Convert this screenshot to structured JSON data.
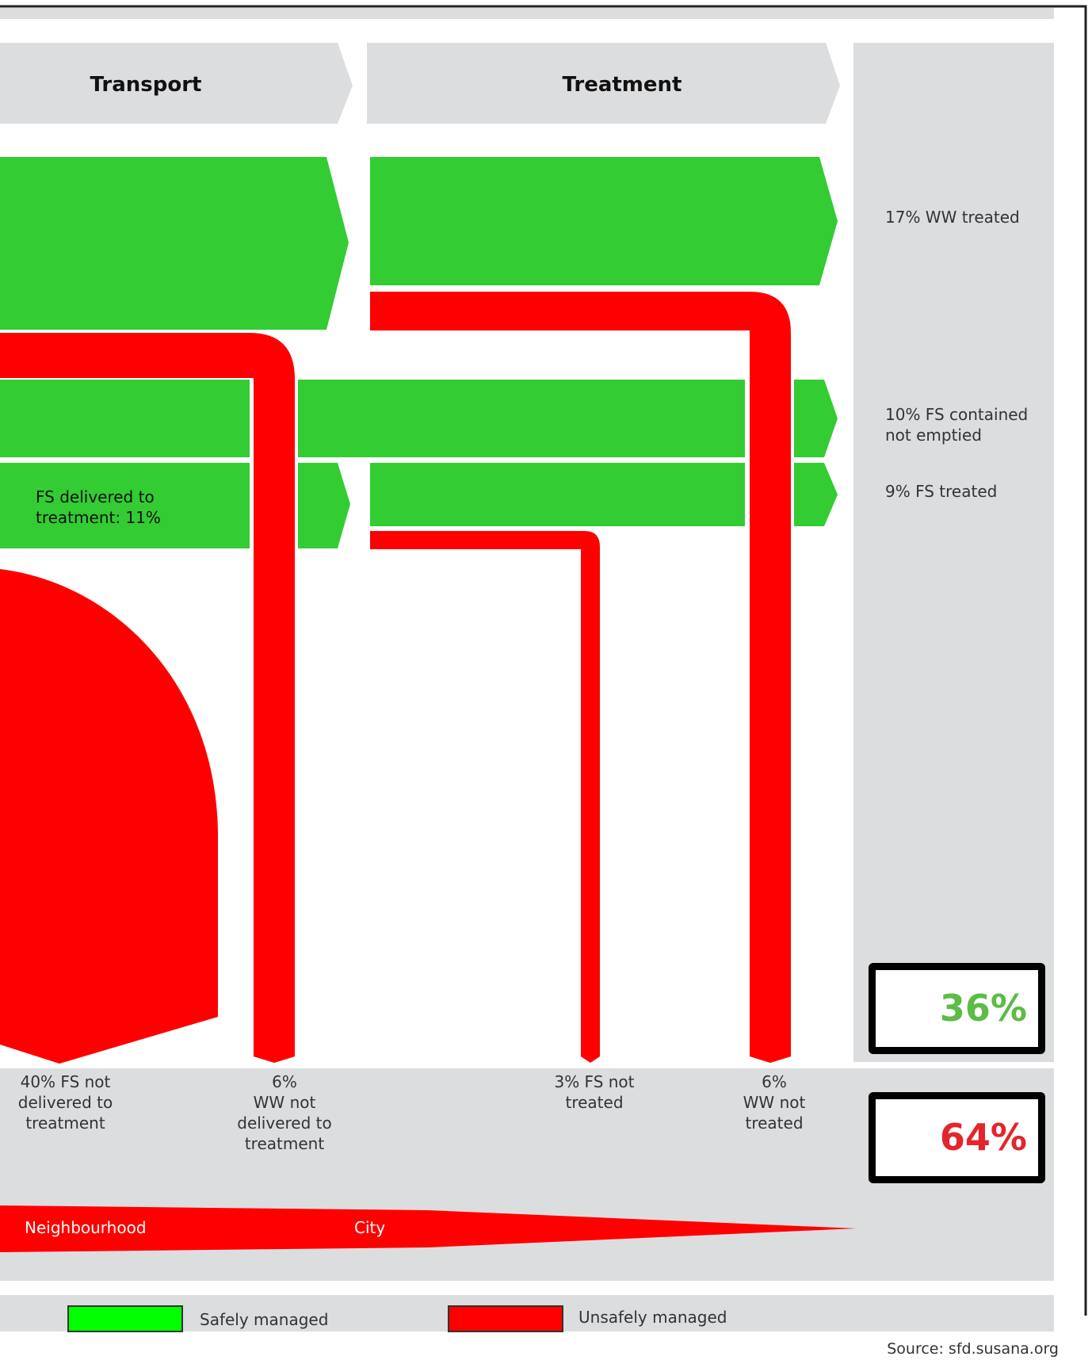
{
  "headers": {
    "transport": "Transport",
    "treatment": "Treatment"
  },
  "outcomes": {
    "ww_treated": "17% WW treated",
    "fs_contained_not_emptied": "10% FS contained\nnot emptied",
    "fs_treated": "9% FS treated"
  },
  "flow_labels": {
    "fs_delivered": "FS delivered to\ntreatment: 11%"
  },
  "bottom_labels": {
    "fs_not_delivered": "40% FS not\ndelivered to\ntreatment",
    "ww_not_delivered": "6%\nWW not\ndelivered to\ntreatment",
    "fs_not_treated": "3% FS not\ntreated",
    "ww_not_treated": "6%\nWW not\ntreated"
  },
  "totals": {
    "safe_pct": "36%",
    "unsafe_pct": "64%",
    "safe_color": "#5dbb46",
    "unsafe_color": "#e3262b"
  },
  "spread": {
    "neighbourhood": "Neighbourhood",
    "city": "City"
  },
  "legend": {
    "safe": "Safely managed",
    "unsafe": "Unsafely managed",
    "safe_color": "#00ff00",
    "unsafe_color": "#ff0000"
  },
  "colors": {
    "flow_green": "#33cc33",
    "flow_red": "#ff0000",
    "panel_grey": "#dcdddf"
  },
  "source": "Source: sfd.susana.org"
}
